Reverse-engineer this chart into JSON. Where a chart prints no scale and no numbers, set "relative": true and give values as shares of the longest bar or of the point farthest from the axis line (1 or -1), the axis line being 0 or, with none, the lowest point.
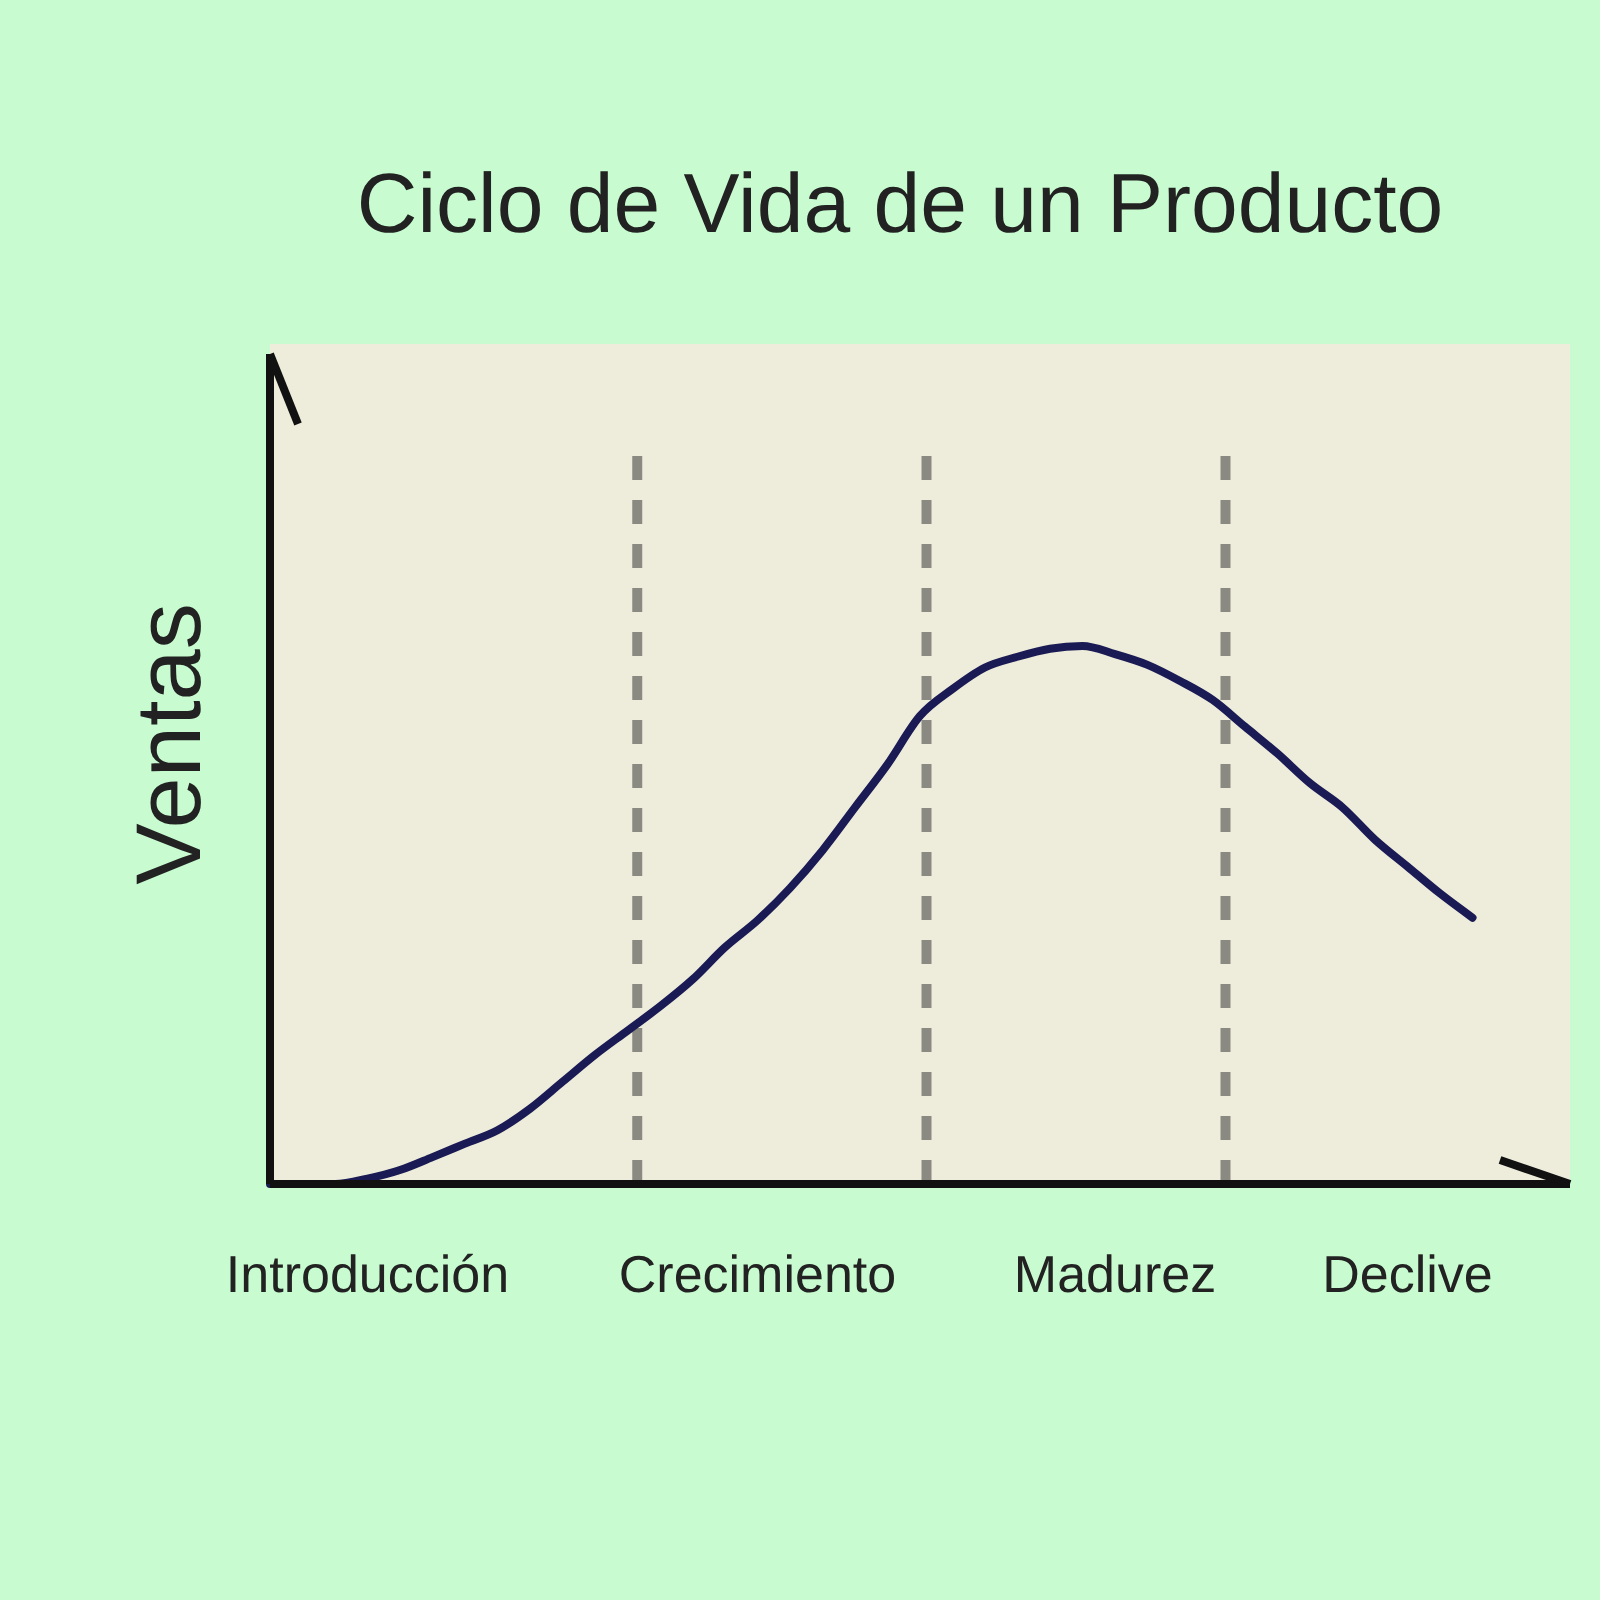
{
  "chart_data": {
    "type": "line",
    "title": "Ciclo de Vida de un Producto",
    "ylabel": "Ventas",
    "relative": true,
    "categories": [
      null,
      null,
      null,
      "Introducción",
      null,
      null,
      null,
      null,
      null,
      null,
      null,
      null,
      null,
      null,
      null,
      "Crecimiento",
      null,
      null,
      null,
      null,
      null,
      null,
      null,
      null,
      null,
      null,
      "Madurez",
      null,
      null,
      null,
      null,
      null,
      null,
      null,
      null,
      "Declive",
      null,
      null,
      null,
      null
    ],
    "series": [
      {
        "color": "#1a1a55",
        "values": [
          0,
          0,
          0,
          0.01,
          0.026,
          0.05,
          0.075,
          0.1,
          0.14,
          0.19,
          0.24,
          0.285,
          0.33,
          0.38,
          0.44,
          0.49,
          0.55,
          0.62,
          0.7,
          0.78,
          0.87,
          0.92,
          0.96,
          0.98,
          0.995,
          1,
          0.985,
          0.965,
          0.935,
          0.9,
          0.85,
          0.8,
          0.745,
          0.7,
          0.64,
          0.59,
          0.54,
          0.495,
          null,
          null
        ]
      }
    ]
  }
}
